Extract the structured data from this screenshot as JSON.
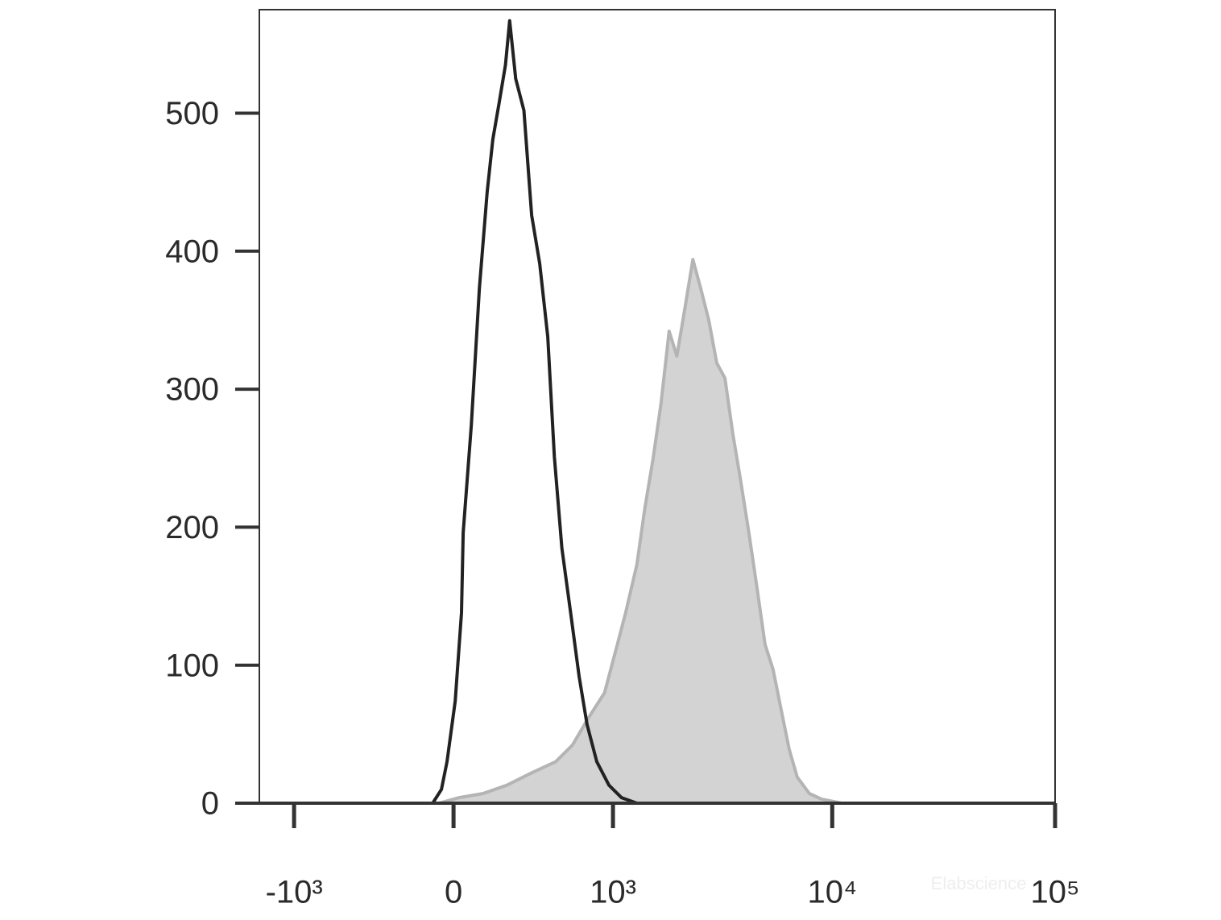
{
  "chart_data": {
    "type": "line",
    "watermark": "Elabscience",
    "xscale": "biexponential",
    "xlim": [
      -1460,
      100000
    ],
    "xticks": [
      {
        "value": -1000,
        "label": "-10³"
      },
      0,
      {
        "value": 1000,
        "label": "10³"
      },
      {
        "value": 10000,
        "label": "10⁴"
      },
      {
        "value": 100000,
        "label": "10⁵"
      }
    ],
    "ylim": [
      0,
      575
    ],
    "yticks": [
      0,
      100,
      200,
      300,
      400,
      500
    ],
    "series": [
      {
        "color": "#b4b4b4",
        "fill": "#d3d3d3",
        "x": [
          -60,
          23,
          124,
          232,
          359,
          505,
          624,
          758,
          910,
          1050,
          1150,
          1300,
          1416,
          1544,
          1681,
          1834,
          1990,
          2167,
          2355,
          2555,
          2780,
          3020,
          3290,
          3570,
          3880,
          4220,
          4590,
          4990,
          5420,
          5890,
          6410,
          6960,
          7890,
          8940,
          11020
        ],
        "values": [
          0,
          4,
          7,
          13,
          22,
          30,
          42,
          62,
          80,
          115,
          138,
          173,
          214,
          249,
          289,
          342,
          324,
          359,
          394,
          373,
          350,
          319,
          308,
          268,
          233,
          196,
          156,
          115,
          97,
          68,
          39,
          19,
          7,
          3,
          0
        ]
      },
      {
        "color": "#222222",
        "x": [
          -87,
          -50,
          -27,
          7,
          33,
          40,
          74,
          108,
          142,
          167,
          195,
          225,
          245,
          275,
          317,
          359,
          405,
          454,
          496,
          547,
          611,
          677,
          744,
          833,
          956,
          1098,
          1300
        ],
        "values": [
          0,
          10,
          30,
          74,
          138,
          196,
          274,
          373,
          443,
          481,
          507,
          535,
          567,
          525,
          502,
          426,
          391,
          338,
          251,
          185,
          138,
          92,
          57,
          30,
          13,
          4,
          0
        ]
      }
    ]
  }
}
